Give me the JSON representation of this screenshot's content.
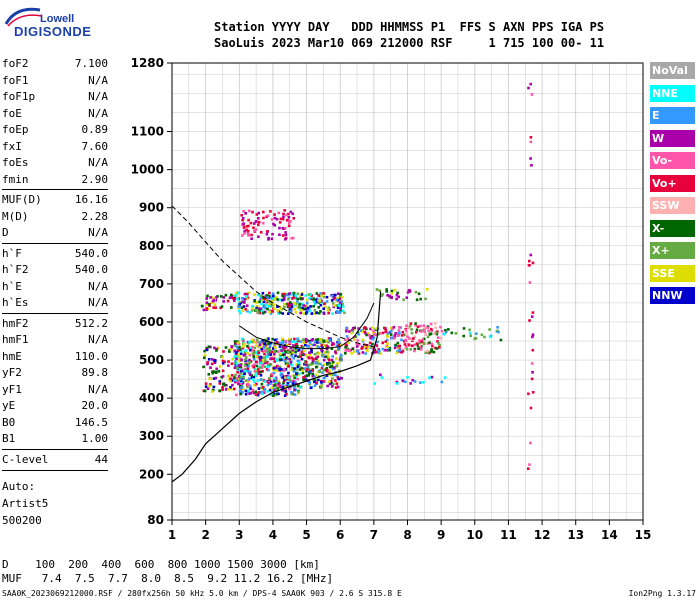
{
  "logo": {
    "line1": "Lowell",
    "line2": "DIGISONDE",
    "color": "#1a3fa8"
  },
  "header": {
    "line1": "Station YYYY DAY   DDD HHMMSS P1  FFS S AXN PPS IGA PS",
    "line2": "SaoLuis 2023 Mar10 069 212000 RSF     1 715 100 00- 11"
  },
  "params": [
    {
      "name": "foF2",
      "value": "7.100"
    },
    {
      "name": "foF1",
      "value": "N/A"
    },
    {
      "name": "foF1p",
      "value": "N/A"
    },
    {
      "name": "foE",
      "value": "N/A"
    },
    {
      "name": "foEp",
      "value": "0.89"
    },
    {
      "name": "fxI",
      "value": "7.60"
    },
    {
      "name": "foEs",
      "value": "N/A"
    },
    {
      "name": "fmin",
      "value": "2.90"
    },
    {
      "name": "MUF(D)",
      "value": "16.16"
    },
    {
      "name": "M(D)",
      "value": "2.28"
    },
    {
      "name": "D",
      "value": "N/A"
    },
    {
      "name": "h`F",
      "value": "540.0"
    },
    {
      "name": "h`F2",
      "value": "540.0"
    },
    {
      "name": "h`E",
      "value": "N/A"
    },
    {
      "name": "h`Es",
      "value": "N/A"
    },
    {
      "name": "hmF2",
      "value": "512.2"
    },
    {
      "name": "hmF1",
      "value": "N/A"
    },
    {
      "name": "hmE",
      "value": "110.0"
    },
    {
      "name": "yF2",
      "value": "89.8"
    },
    {
      "name": "yF1",
      "value": "N/A"
    },
    {
      "name": "yE",
      "value": "20.0"
    },
    {
      "name": "B0",
      "value": "146.5"
    },
    {
      "name": "B1",
      "value": "1.00"
    },
    {
      "name": "C-level",
      "value": "44"
    }
  ],
  "autoscale": {
    "line1": "Auto:",
    "line2": "Artist5",
    "line3": "500200"
  },
  "legend": [
    {
      "label": "NoVal",
      "color": "#a8a8a8"
    },
    {
      "label": "NNE",
      "color": "#00ffff"
    },
    {
      "label": "E",
      "color": "#3399ff"
    },
    {
      "label": "W",
      "color": "#aa00aa"
    },
    {
      "label": "Vo-",
      "color": "#ff55aa"
    },
    {
      "label": "Vo+",
      "color": "#e8003c"
    },
    {
      "label": "SSW",
      "color": "#ffb0b0"
    },
    {
      "label": "X-",
      "color": "#006600"
    },
    {
      "label": "X+",
      "color": "#66aa44"
    },
    {
      "label": "SSE",
      "color": "#dddd00"
    },
    {
      "label": "NNW",
      "color": "#0000cc"
    }
  ],
  "mufTable": {
    "dLine": "D    100  200  400  600  800 1000 1500 3000 [km]",
    "mufLine": "MUF   7.4  7.5  7.7  8.0  8.5  9.2 11.2 16.2 [MHz]"
  },
  "footer": {
    "left": "SAA0K_2023069212000.RSF / 280fx256h 50 kHz 5.0 km / DPS-4 SAA0K 903 / 2.6 S 315.8 E",
    "right": "Ion2Png 1.3.17"
  },
  "chart_data": {
    "type": "scatter",
    "xlim": [
      1,
      15
    ],
    "ylim": [
      80,
      1280
    ],
    "x_ticks": [
      "1",
      "2",
      "3",
      "4",
      "5",
      "6",
      "7",
      "8",
      "9",
      "10",
      "11",
      "12",
      "13",
      "14",
      "15"
    ],
    "y_ticks": [
      "80",
      "200",
      "300",
      "400",
      "500",
      "600",
      "700",
      "800",
      "900",
      "1000",
      "1100",
      "1280"
    ],
    "y_tick_values": [
      80,
      200,
      300,
      400,
      500,
      600,
      700,
      800,
      900,
      1000,
      1100,
      1280
    ],
    "grid": true,
    "clusters": [
      {
        "x0": 2.8,
        "x1": 4.8,
        "y0": 410,
        "y1": 560,
        "density": 650,
        "colors": [
          "#aa00aa",
          "#e8003c",
          "#ff55aa",
          "#0000cc",
          "#dddd00",
          "#3399ff",
          "#00ffff",
          "#006600",
          "#66aa44"
        ]
      },
      {
        "x0": 4.8,
        "x1": 6.0,
        "y0": 430,
        "y1": 560,
        "density": 260,
        "colors": [
          "#aa00aa",
          "#e8003c",
          "#0000cc",
          "#dddd00",
          "#3399ff",
          "#006600",
          "#66aa44"
        ]
      },
      {
        "x0": 1.9,
        "x1": 2.8,
        "y0": 420,
        "y1": 540,
        "density": 90,
        "colors": [
          "#dddd00",
          "#e8003c",
          "#aa00aa",
          "#0000cc",
          "#006600"
        ]
      },
      {
        "x0": 2.8,
        "x1": 6.1,
        "y0": 625,
        "y1": 680,
        "density": 330,
        "colors": [
          "#dddd00",
          "#aa00aa",
          "#0000cc",
          "#e8003c",
          "#006600",
          "#66aa44",
          "#3399ff",
          "#00ffff"
        ]
      },
      {
        "x0": 1.8,
        "x1": 2.8,
        "y0": 635,
        "y1": 675,
        "density": 40,
        "colors": [
          "#dddd00",
          "#aa00aa",
          "#006600",
          "#e8003c"
        ]
      },
      {
        "x0": 6.1,
        "x1": 7.8,
        "y0": 520,
        "y1": 590,
        "density": 170,
        "colors": [
          "#e8003c",
          "#ff55aa",
          "#aa00aa",
          "#006600",
          "#dddd00",
          "#3399ff"
        ]
      },
      {
        "x0": 7.8,
        "x1": 9.0,
        "y0": 520,
        "y1": 600,
        "density": 110,
        "colors": [
          "#e8003c",
          "#ff55aa",
          "#66aa44",
          "#ffb0b0",
          "#006600"
        ]
      },
      {
        "x0": 3.0,
        "x1": 4.6,
        "y0": 820,
        "y1": 900,
        "density": 90,
        "colors": [
          "#aa00aa",
          "#e8003c",
          "#ff55aa"
        ]
      },
      {
        "x0": 7.0,
        "x1": 8.6,
        "y0": 660,
        "y1": 690,
        "density": 30,
        "colors": [
          "#dddd00",
          "#aa00aa",
          "#66aa44",
          "#006600"
        ]
      },
      {
        "x0": 9.0,
        "x1": 10.8,
        "y0": 555,
        "y1": 590,
        "density": 25,
        "colors": [
          "#66aa44",
          "#3399ff",
          "#00ffff",
          "#006600"
        ]
      },
      {
        "x0": 11.55,
        "x1": 11.7,
        "y0": 200,
        "y1": 1240,
        "density": 28,
        "colors": [
          "#e8003c",
          "#aa00aa",
          "#ff55aa"
        ]
      },
      {
        "x0": 6.8,
        "x1": 9.2,
        "y0": 440,
        "y1": 470,
        "density": 18,
        "colors": [
          "#00ffff",
          "#3399ff",
          "#aa00aa"
        ]
      }
    ],
    "profile_line": [
      [
        1.0,
        180
      ],
      [
        1.3,
        200
      ],
      [
        1.7,
        240
      ],
      [
        2.0,
        280
      ],
      [
        2.5,
        320
      ],
      [
        3.0,
        360
      ],
      [
        3.5,
        390
      ],
      [
        4.0,
        415
      ],
      [
        4.5,
        430
      ],
      [
        5.0,
        445
      ],
      [
        5.5,
        460
      ],
      [
        6.0,
        470
      ],
      [
        6.5,
        485
      ],
      [
        6.9,
        500
      ],
      [
        7.1,
        560
      ],
      [
        7.2,
        680
      ]
    ],
    "trace_line": [
      [
        3.0,
        590
      ],
      [
        3.5,
        560
      ],
      [
        4.0,
        545
      ],
      [
        4.5,
        535
      ],
      [
        5.0,
        530
      ],
      [
        5.5,
        530
      ],
      [
        6.0,
        535
      ],
      [
        6.4,
        560
      ],
      [
        6.8,
        610
      ],
      [
        7.0,
        650
      ]
    ],
    "muf_curve": [
      [
        1.0,
        905
      ],
      [
        1.5,
        860
      ],
      [
        2.0,
        810
      ],
      [
        2.5,
        760
      ],
      [
        3.0,
        720
      ],
      [
        3.5,
        680
      ],
      [
        4.0,
        650
      ],
      [
        4.5,
        625
      ],
      [
        5.0,
        600
      ],
      [
        5.5,
        580
      ],
      [
        6.0,
        560
      ],
      [
        6.5,
        545
      ],
      [
        7.0,
        535
      ]
    ]
  }
}
